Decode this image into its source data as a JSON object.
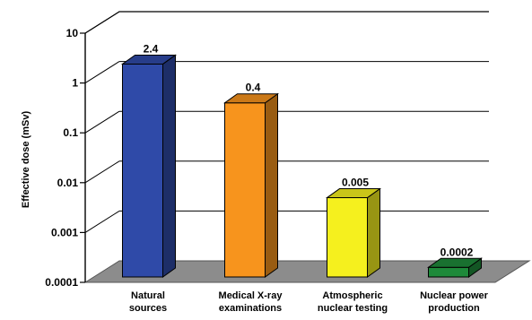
{
  "chart_data": {
    "type": "bar",
    "ylabel": "Effective dose (mSv)",
    "yscale": "log",
    "ylim": [
      0.0001,
      10
    ],
    "yticks": [
      "0.0001",
      "0.001",
      "0.01",
      "0.1",
      "1",
      "10"
    ],
    "categories": [
      [
        "Natural",
        "sources"
      ],
      [
        "Medical X-ray",
        "examinations"
      ],
      [
        "Atmospheric",
        "nuclear testing"
      ],
      [
        "Nuclear power",
        "production"
      ]
    ],
    "values": [
      2.4,
      0.4,
      0.005,
      0.0002
    ],
    "data_labels": [
      "2.4",
      "0.4",
      "0.005",
      "0.0002"
    ],
    "colors": [
      "#2f4aa8",
      "#f7941d",
      "#f5f01e",
      "#1e8a3a"
    ],
    "grid": true
  }
}
